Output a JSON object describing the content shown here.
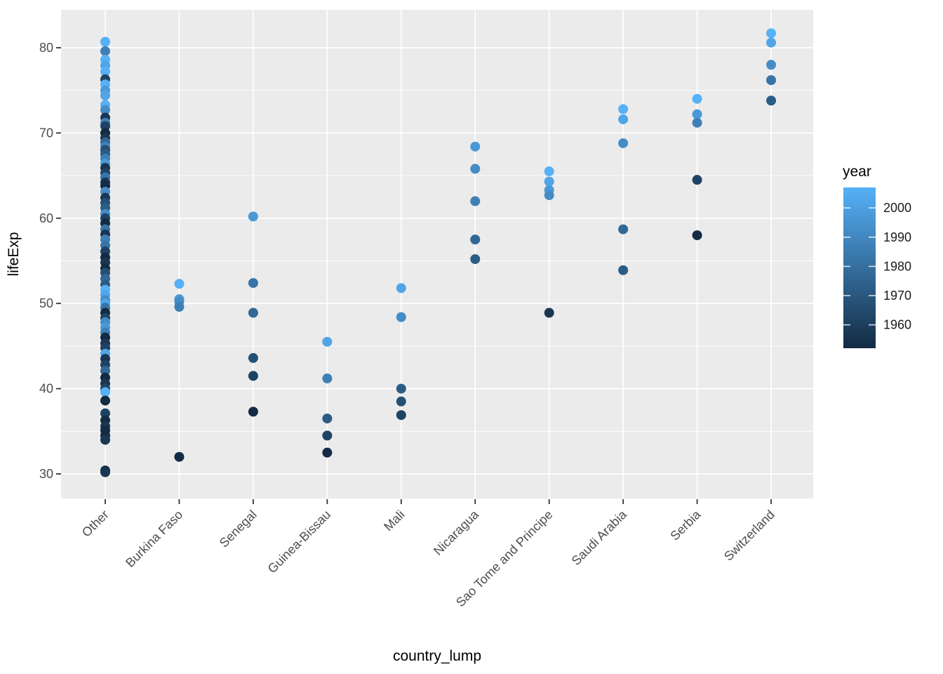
{
  "chart_data": {
    "type": "scatter",
    "title": "",
    "xlabel": "country_lump",
    "ylabel": "lifeExp",
    "x_categories": [
      "Other",
      "Burkina Faso",
      "Senegal",
      "Guinea-Bissau",
      "Mali",
      "Nicaragua",
      "Sao Tome and Principe",
      "Saudi Arabia",
      "Serbia",
      "Switzerland"
    ],
    "y_ticks": [
      30,
      40,
      50,
      60,
      70,
      80
    ],
    "y_minor_ticks": [
      35,
      45,
      55,
      65,
      75
    ],
    "ylim": [
      27.5,
      84.5
    ],
    "panel_bg": "#EBEBEB",
    "grid_color": "#FFFFFF",
    "tick_mark_color": "#333333",
    "point_format": [
      "lifeExp",
      "year"
    ],
    "color_scale": {
      "title": "year",
      "low": "#132B43",
      "high": "#56B1F7",
      "domain": [
        1952,
        2007
      ],
      "legend_ticks": [
        2000,
        1990,
        1980,
        1970,
        1960
      ]
    },
    "series": [
      {
        "country": "Other",
        "points": [
          [
            80.7,
            2007
          ],
          [
            79.6,
            1987
          ],
          [
            78.6,
            2007
          ],
          [
            77.9,
            2002
          ],
          [
            77.2,
            2007
          ],
          [
            76.3,
            1962
          ],
          [
            75.7,
            2007
          ],
          [
            75.0,
            1997
          ],
          [
            74.4,
            2002
          ],
          [
            73.3,
            2007
          ],
          [
            72.7,
            1992
          ],
          [
            71.8,
            1957
          ],
          [
            71.2,
            1987
          ],
          [
            70.8,
            1962
          ],
          [
            70.0,
            1952
          ],
          [
            69.4,
            1957
          ],
          [
            68.9,
            1977
          ],
          [
            68.4,
            1987
          ],
          [
            68.0,
            1967
          ],
          [
            67.5,
            1972
          ],
          [
            67.0,
            1987
          ],
          [
            66.4,
            1997
          ],
          [
            65.9,
            1957
          ],
          [
            65.3,
            1962
          ],
          [
            64.8,
            1982
          ],
          [
            64.2,
            1957
          ],
          [
            63.8,
            1952
          ],
          [
            63.1,
            1992
          ],
          [
            62.4,
            1957
          ],
          [
            61.8,
            1967
          ],
          [
            61.2,
            1972
          ],
          [
            60.5,
            1992
          ],
          [
            60.0,
            1962
          ],
          [
            59.4,
            1952
          ],
          [
            58.7,
            1982
          ],
          [
            58.1,
            1957
          ],
          [
            57.5,
            1987
          ],
          [
            56.8,
            1982
          ],
          [
            56.1,
            1962
          ],
          [
            55.4,
            1952
          ],
          [
            54.8,
            1957
          ],
          [
            54.1,
            1952
          ],
          [
            53.6,
            1967
          ],
          [
            52.9,
            1977
          ],
          [
            52.2,
            1972
          ],
          [
            51.6,
            2007
          ],
          [
            51.0,
            2002
          ],
          [
            50.4,
            1992
          ],
          [
            50.0,
            2002
          ],
          [
            49.5,
            1982
          ],
          [
            48.9,
            1952
          ],
          [
            48.3,
            1962
          ],
          [
            47.8,
            1992
          ],
          [
            47.2,
            1997
          ],
          [
            46.6,
            1987
          ],
          [
            46.0,
            1952
          ],
          [
            45.3,
            1957
          ],
          [
            44.8,
            1962
          ],
          [
            44.1,
            2002
          ],
          [
            43.5,
            1957
          ],
          [
            42.8,
            1962
          ],
          [
            42.1,
            1977
          ],
          [
            41.3,
            1952
          ],
          [
            40.6,
            1957
          ],
          [
            40.0,
            1962
          ],
          [
            39.6,
            2007
          ],
          [
            38.6,
            1952
          ],
          [
            37.1,
            1962
          ],
          [
            36.3,
            1952
          ],
          [
            35.6,
            1957
          ],
          [
            35.1,
            1952
          ],
          [
            34.5,
            1952
          ],
          [
            34.0,
            1957
          ],
          [
            30.4,
            1952
          ],
          [
            30.2,
            1957
          ]
        ]
      },
      {
        "country": "Burkina Faso",
        "points": [
          [
            52.3,
            2007
          ],
          [
            50.5,
            1997
          ],
          [
            50.2,
            1992
          ],
          [
            49.6,
            1987
          ],
          [
            32.0,
            1952
          ]
        ]
      },
      {
        "country": "Senegal",
        "points": [
          [
            60.2,
            1997
          ],
          [
            52.4,
            1982
          ],
          [
            48.9,
            1977
          ],
          [
            43.6,
            1967
          ],
          [
            41.5,
            1962
          ],
          [
            37.3,
            1952
          ]
        ]
      },
      {
        "country": "Guinea-Bissau",
        "points": [
          [
            45.5,
            2002
          ],
          [
            41.2,
            1987
          ],
          [
            36.5,
            1972
          ],
          [
            34.5,
            1962
          ],
          [
            32.5,
            1952
          ]
        ]
      },
      {
        "country": "Mali",
        "points": [
          [
            51.8,
            2002
          ],
          [
            48.4,
            1992
          ],
          [
            40.0,
            1972
          ],
          [
            38.5,
            1967
          ],
          [
            36.9,
            1962
          ]
        ]
      },
      {
        "country": "Nicaragua",
        "points": [
          [
            68.4,
            1997
          ],
          [
            65.8,
            1992
          ],
          [
            62.0,
            1987
          ],
          [
            57.5,
            1977
          ],
          [
            55.2,
            1972
          ]
        ]
      },
      {
        "country": "Sao Tome and Principe",
        "points": [
          [
            65.5,
            2007
          ],
          [
            64.3,
            2002
          ],
          [
            63.3,
            1997
          ],
          [
            62.7,
            1992
          ],
          [
            48.9,
            1957
          ]
        ]
      },
      {
        "country": "Saudi Arabia",
        "points": [
          [
            72.8,
            2007
          ],
          [
            71.6,
            2002
          ],
          [
            68.8,
            1992
          ],
          [
            58.7,
            1977
          ],
          [
            53.9,
            1972
          ]
        ]
      },
      {
        "country": "Serbia",
        "points": [
          [
            74.0,
            2007
          ],
          [
            72.2,
            1997
          ],
          [
            71.2,
            1987
          ],
          [
            64.5,
            1962
          ],
          [
            58.0,
            1952
          ]
        ]
      },
      {
        "country": "Switzerland",
        "points": [
          [
            81.7,
            2007
          ],
          [
            80.6,
            2002
          ],
          [
            78.0,
            1992
          ],
          [
            76.2,
            1982
          ],
          [
            73.8,
            1972
          ]
        ]
      }
    ]
  }
}
